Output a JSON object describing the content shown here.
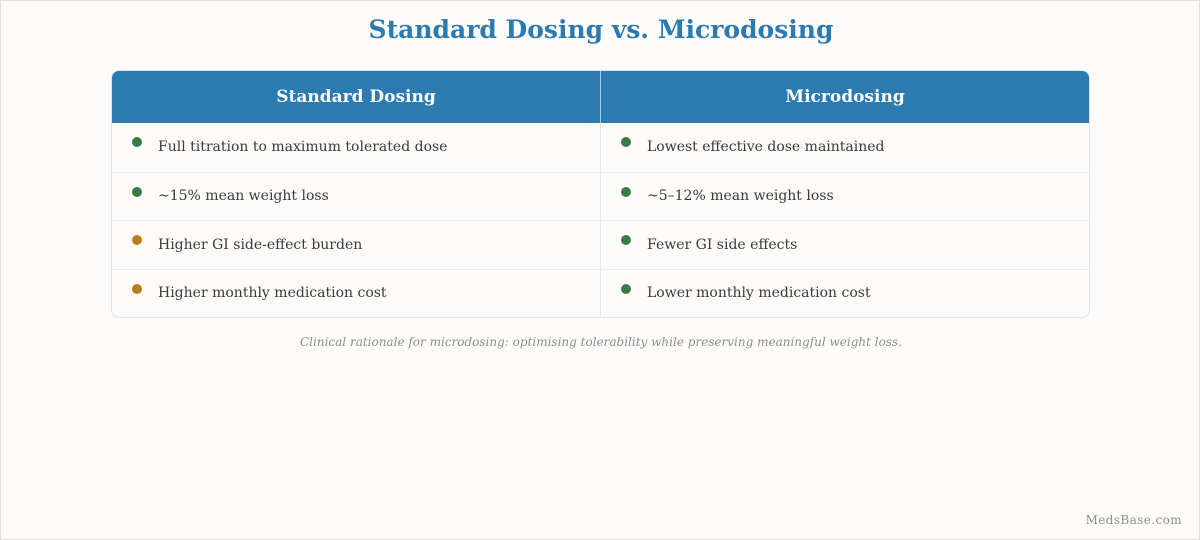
{
  "title": "Standard Dosing vs. Microdosing",
  "colors": {
    "header_bg": "#2b7ab0",
    "title": "#2b7ab0",
    "bullet_positive": "#3a7a45",
    "bullet_caution": "#c07a1e"
  },
  "table": {
    "columns": [
      {
        "header": "Standard Dosing",
        "rows": [
          {
            "text": "Full titration to maximum tolerated dose",
            "bullet": "positive"
          },
          {
            "text": "~15% mean weight loss",
            "bullet": "positive"
          },
          {
            "text": "Higher GI side-effect burden",
            "bullet": "caution"
          },
          {
            "text": "Higher monthly medication cost",
            "bullet": "caution"
          }
        ]
      },
      {
        "header": "Microdosing",
        "rows": [
          {
            "text": "Lowest effective dose maintained",
            "bullet": "positive"
          },
          {
            "text": "~5–12% mean weight loss",
            "bullet": "positive"
          },
          {
            "text": "Fewer GI side effects",
            "bullet": "positive"
          },
          {
            "text": "Lower monthly medication cost",
            "bullet": "positive"
          }
        ]
      }
    ]
  },
  "caption": "Clinical rationale for microdosing: optimising tolerability while preserving meaningful weight loss.",
  "watermark": "MedsBase.com"
}
